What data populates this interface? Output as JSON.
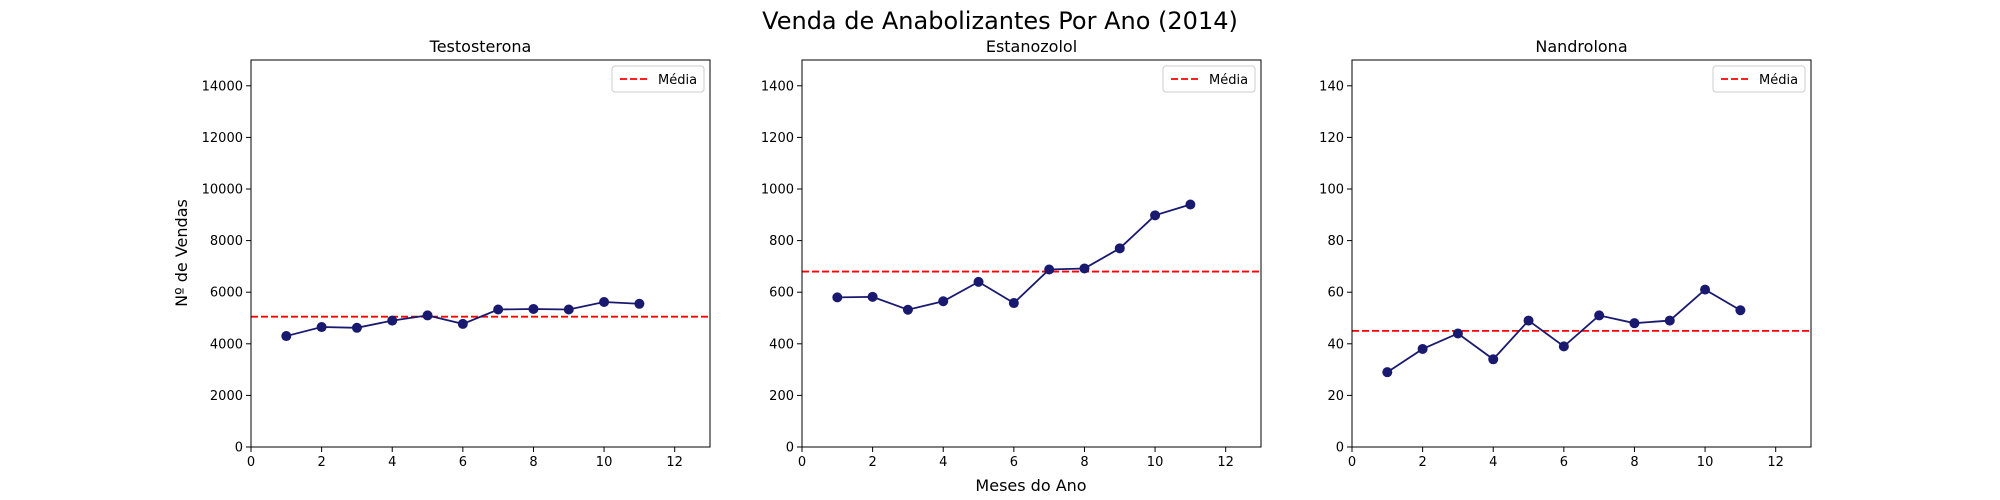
{
  "figure": {
    "title": "Venda de Anabolizantes Por Ano (2014)",
    "xlabel": "Meses do Ano",
    "ylabel": "Nº de Vendas"
  },
  "colors": {
    "line": "#191970",
    "mean": "#ff0000"
  },
  "chart_data": [
    {
      "type": "line",
      "title": "Testosterona",
      "legend": {
        "label": "Média",
        "placement": "top-right"
      },
      "x": [
        1,
        2,
        3,
        4,
        5,
        6,
        7,
        8,
        9,
        10,
        11
      ],
      "values": [
        4300,
        4650,
        4620,
        4900,
        5100,
        4770,
        5330,
        5350,
        5330,
        5620,
        5550
      ],
      "mean": 5050,
      "xlim": [
        0,
        13
      ],
      "ylim": [
        0,
        15000
      ],
      "xticks": [
        0,
        2,
        4,
        6,
        8,
        10,
        12
      ],
      "yticks": [
        0,
        2000,
        4000,
        6000,
        8000,
        10000,
        12000,
        14000
      ],
      "grid": false
    },
    {
      "type": "line",
      "title": "Estanozolol",
      "legend": {
        "label": "Média",
        "placement": "top-right"
      },
      "x": [
        1,
        2,
        3,
        4,
        5,
        6,
        7,
        8,
        9,
        10,
        11
      ],
      "values": [
        580,
        582,
        532,
        565,
        640,
        558,
        688,
        692,
        770,
        898,
        940
      ],
      "mean": 680,
      "xlim": [
        0,
        13
      ],
      "ylim": [
        0,
        1500
      ],
      "xticks": [
        0,
        2,
        4,
        6,
        8,
        10,
        12
      ],
      "yticks": [
        0,
        200,
        400,
        600,
        800,
        1000,
        1200,
        1400
      ],
      "grid": false
    },
    {
      "type": "line",
      "title": "Nandrolona",
      "legend": {
        "label": "Média",
        "placement": "top-right"
      },
      "x": [
        1,
        2,
        3,
        4,
        5,
        6,
        7,
        8,
        9,
        10,
        11
      ],
      "values": [
        29,
        38,
        44,
        34,
        49,
        39,
        51,
        48,
        49,
        61,
        53
      ],
      "mean": 45,
      "xlim": [
        0,
        13
      ],
      "ylim": [
        0,
        150
      ],
      "xticks": [
        0,
        2,
        4,
        6,
        8,
        10,
        12
      ],
      "yticks": [
        0,
        20,
        40,
        60,
        80,
        100,
        120,
        140
      ],
      "grid": false
    }
  ]
}
